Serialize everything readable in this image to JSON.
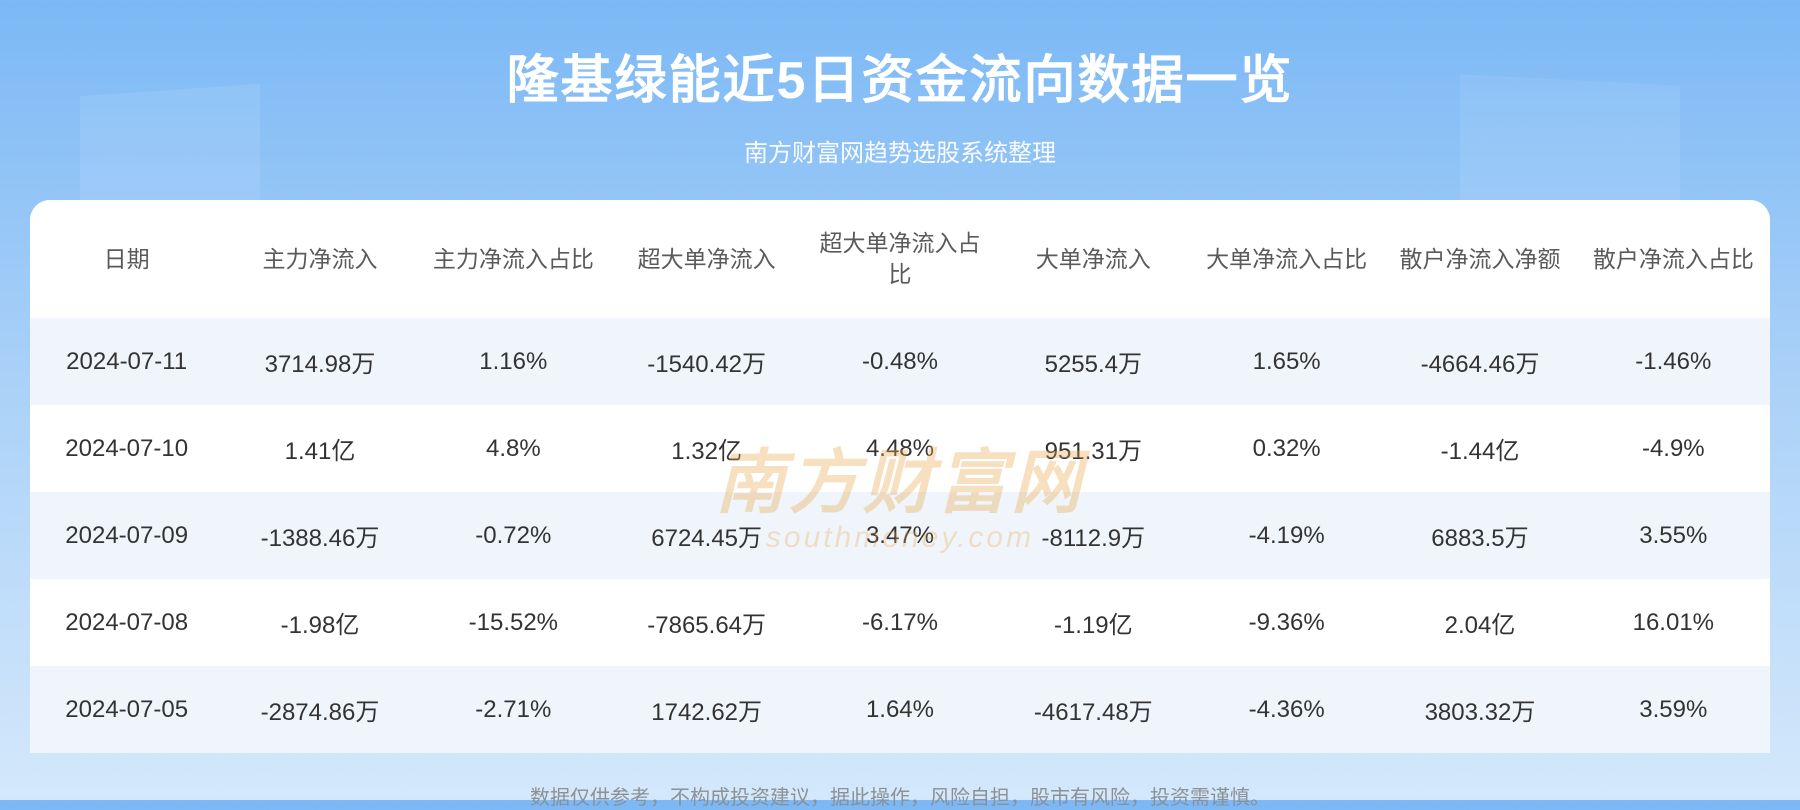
{
  "header": {
    "title": "隆基绿能近5日资金流向数据一览",
    "subtitle": "南方财富网趋势选股系统整理"
  },
  "table": {
    "columns": [
      "日期",
      "主力净流入",
      "主力净流入占比",
      "超大单净流入",
      "超大单净流入占比",
      "大单净流入",
      "大单净流入占比",
      "散户净流入净额",
      "散户净流入占比"
    ],
    "rows": [
      [
        "2024-07-11",
        "3714.98万",
        "1.16%",
        "-1540.42万",
        "-0.48%",
        "5255.4万",
        "1.65%",
        "-4664.46万",
        "-1.46%"
      ],
      [
        "2024-07-10",
        "1.41亿",
        "4.8%",
        "1.32亿",
        "4.48%",
        "951.31万",
        "0.32%",
        "-1.44亿",
        "-4.9%"
      ],
      [
        "2024-07-09",
        "-1388.46万",
        "-0.72%",
        "6724.45万",
        "3.47%",
        "-8112.9万",
        "-4.19%",
        "6883.5万",
        "3.55%"
      ],
      [
        "2024-07-08",
        "-1.98亿",
        "-15.52%",
        "-7865.64万",
        "-6.17%",
        "-1.19亿",
        "-9.36%",
        "2.04亿",
        "16.01%"
      ],
      [
        "2024-07-05",
        "-2874.86万",
        "-2.71%",
        "1742.62万",
        "1.64%",
        "-4617.48万",
        "-4.36%",
        "3803.32万",
        "3.59%"
      ]
    ],
    "row_bg_odd": "#f0f5fb",
    "row_bg_even": "#ffffff",
    "header_color": "#5a5a5a",
    "cell_color": "#333333",
    "header_fontsize": 23,
    "cell_fontsize": 24
  },
  "watermark": {
    "main": "南方财富网",
    "sub": "southmoney.com",
    "color": "#e8a84a",
    "opacity": 0.35
  },
  "disclaimer": "数据仅供参考，不构成投资建议，据此操作，风险自担，股市有风险，投资需谨慎。",
  "style": {
    "bg_gradient_top": "#7bb8f5",
    "bg_gradient_mid": "#a8d0f8",
    "bg_gradient_bottom": "#d4e8fb",
    "title_color": "#ffffff",
    "title_fontsize": 52,
    "subtitle_fontsize": 24,
    "disclaimer_color": "#8a9199",
    "disclaimer_fontsize": 20,
    "card_radius": 20
  }
}
